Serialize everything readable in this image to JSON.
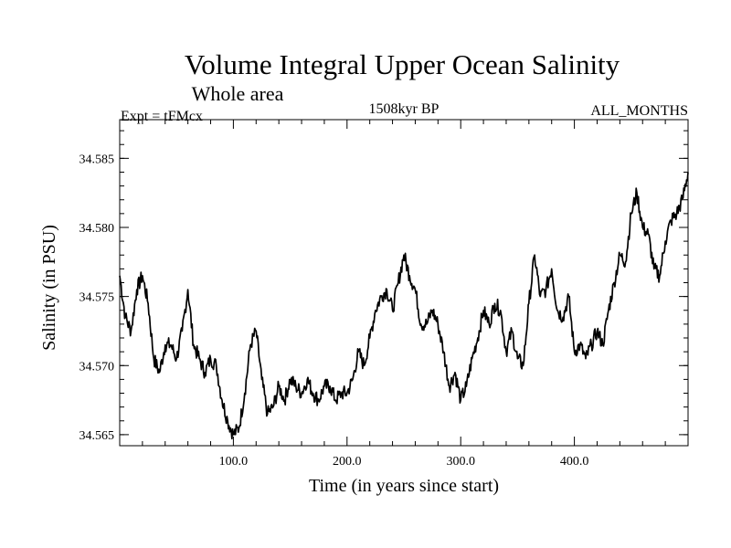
{
  "chart_data": {
    "type": "line",
    "title": "Volume Integral Upper Ocean Salinity",
    "subtitle": "Whole area",
    "left_label": "Expt = tFMcx",
    "center_label": "1508kyr BP",
    "right_label": "ALL_MONTHS",
    "xlabel": "Time (in years since start)",
    "ylabel": "Salinity (in PSU)",
    "xlim": [
      0,
      500
    ],
    "ylim": [
      34.5642,
      34.5878
    ],
    "x_ticks": [
      100,
      200,
      300,
      400
    ],
    "x_tick_labels": [
      "100.0",
      "200.0",
      "300.0",
      "400.0"
    ],
    "y_ticks": [
      34.565,
      34.57,
      34.575,
      34.58,
      34.585
    ],
    "y_tick_labels": [
      "34.565",
      "34.570",
      "34.575",
      "34.580",
      "34.585"
    ],
    "grid": false,
    "series": [
      {
        "name": "salinity",
        "color": "#000000",
        "x": [
          0,
          5,
          10,
          15,
          20,
          25,
          30,
          35,
          40,
          45,
          50,
          55,
          60,
          65,
          70,
          75,
          80,
          85,
          90,
          95,
          100,
          105,
          110,
          115,
          120,
          125,
          130,
          135,
          140,
          145,
          150,
          155,
          160,
          165,
          170,
          175,
          180,
          185,
          190,
          195,
          200,
          205,
          210,
          215,
          220,
          225,
          230,
          235,
          240,
          245,
          250,
          255,
          260,
          265,
          270,
          275,
          280,
          285,
          290,
          295,
          300,
          305,
          310,
          315,
          320,
          325,
          330,
          335,
          340,
          345,
          350,
          355,
          360,
          365,
          370,
          375,
          380,
          385,
          390,
          395,
          400,
          405,
          410,
          415,
          420,
          425,
          430,
          435,
          440,
          445,
          450,
          455,
          460,
          465,
          470,
          475,
          480,
          485,
          490,
          495,
          500
        ],
        "values": [
          34.5765,
          34.5735,
          34.5725,
          34.5755,
          34.5765,
          34.5745,
          34.5705,
          34.5695,
          34.5715,
          34.5715,
          34.5705,
          34.5725,
          34.5755,
          34.5715,
          34.5705,
          34.5695,
          34.5705,
          34.57,
          34.5675,
          34.566,
          34.565,
          34.5655,
          34.568,
          34.5715,
          34.5725,
          34.569,
          34.5665,
          34.567,
          34.5685,
          34.5675,
          34.569,
          34.5685,
          34.568,
          34.569,
          34.568,
          34.5675,
          34.5685,
          34.5685,
          34.5675,
          34.568,
          34.568,
          34.569,
          34.571,
          34.57,
          34.572,
          34.574,
          34.575,
          34.5755,
          34.574,
          34.576,
          34.578,
          34.5765,
          34.5755,
          34.573,
          34.573,
          34.574,
          34.573,
          34.571,
          34.5685,
          34.5695,
          34.5675,
          34.5685,
          34.5705,
          34.572,
          34.574,
          34.573,
          34.5745,
          34.574,
          34.571,
          34.5725,
          34.5705,
          34.57,
          34.5745,
          34.578,
          34.575,
          34.5755,
          34.577,
          34.574,
          34.5735,
          34.575,
          34.571,
          34.5715,
          34.5705,
          34.5715,
          34.5725,
          34.5715,
          34.574,
          34.576,
          34.578,
          34.5775,
          34.581,
          34.5825,
          34.58,
          34.5795,
          34.577,
          34.5765,
          34.579,
          34.5805,
          34.581,
          34.582,
          34.584
        ]
      }
    ]
  }
}
